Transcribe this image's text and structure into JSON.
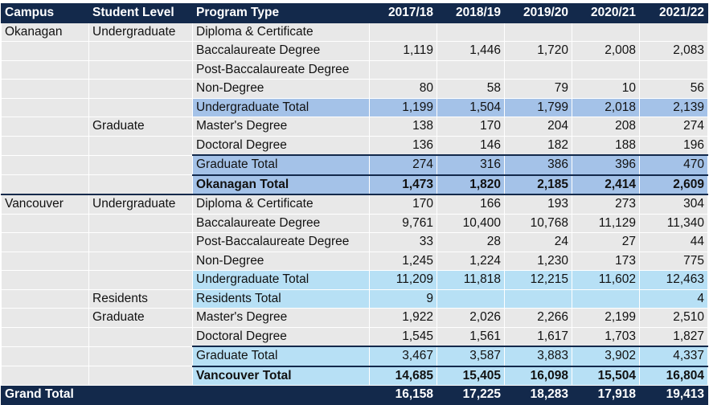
{
  "table": {
    "headers": [
      "Campus",
      "Student Level",
      "Program Type",
      "2017/18",
      "2018/19",
      "2019/20",
      "2020/21",
      "2021/22"
    ],
    "rows": [
      {
        "campus": "Okanagan",
        "level": "Undergraduate",
        "program": "Diploma & Certificate",
        "v": [
          "",
          "",
          "",
          "",
          ""
        ]
      },
      {
        "campus": "",
        "level": "",
        "program": "Baccalaureate Degree",
        "v": [
          "1,119",
          "1,446",
          "1,720",
          "2,008",
          "2,083"
        ]
      },
      {
        "campus": "",
        "level": "",
        "program": "Post-Baccalaureate Degree",
        "v": [
          "",
          "",
          "",
          "",
          ""
        ]
      },
      {
        "campus": "",
        "level": "",
        "program": "Non-Degree",
        "v": [
          "80",
          "58",
          "79",
          "10",
          "56"
        ]
      },
      {
        "campus": "",
        "level": "",
        "program": "Undergraduate Total",
        "v": [
          "1,199",
          "1,504",
          "1,799",
          "2,018",
          "2,139"
        ]
      },
      {
        "campus": "",
        "level": "Graduate",
        "program": "Master's Degree",
        "v": [
          "138",
          "170",
          "204",
          "208",
          "274"
        ]
      },
      {
        "campus": "",
        "level": "",
        "program": "Doctoral Degree",
        "v": [
          "136",
          "146",
          "182",
          "188",
          "196"
        ]
      },
      {
        "campus": "",
        "level": "",
        "program": "Graduate Total",
        "v": [
          "274",
          "316",
          "386",
          "396",
          "470"
        ]
      },
      {
        "campus": "",
        "level": "",
        "program": "Okanagan Total",
        "v": [
          "1,473",
          "1,820",
          "2,185",
          "2,414",
          "2,609"
        ]
      },
      {
        "campus": "Vancouver",
        "level": "Undergraduate",
        "program": "Diploma & Certificate",
        "v": [
          "170",
          "166",
          "193",
          "273",
          "304"
        ]
      },
      {
        "campus": "",
        "level": "",
        "program": "Baccalaureate Degree",
        "v": [
          "9,761",
          "10,400",
          "10,768",
          "11,129",
          "11,340"
        ]
      },
      {
        "campus": "",
        "level": "",
        "program": "Post-Baccalaureate Degree",
        "v": [
          "33",
          "28",
          "24",
          "27",
          "44"
        ]
      },
      {
        "campus": "",
        "level": "",
        "program": "Non-Degree",
        "v": [
          "1,245",
          "1,224",
          "1,230",
          "173",
          "775"
        ]
      },
      {
        "campus": "",
        "level": "",
        "program": "Undergraduate Total",
        "v": [
          "11,209",
          "11,818",
          "12,215",
          "11,602",
          "12,463"
        ]
      },
      {
        "campus": "",
        "level": "Residents",
        "program": "Residents Total",
        "v": [
          "9",
          "",
          "",
          "",
          "4"
        ]
      },
      {
        "campus": "",
        "level": "Graduate",
        "program": "Master's Degree",
        "v": [
          "1,922",
          "2,026",
          "2,266",
          "2,199",
          "2,510"
        ]
      },
      {
        "campus": "",
        "level": "",
        "program": "Doctoral Degree",
        "v": [
          "1,545",
          "1,561",
          "1,617",
          "1,703",
          "1,827"
        ]
      },
      {
        "campus": "",
        "level": "",
        "program": "Graduate Total",
        "v": [
          "3,467",
          "3,587",
          "3,883",
          "3,902",
          "4,337"
        ]
      },
      {
        "campus": "",
        "level": "",
        "program": "Vancouver Total",
        "v": [
          "14,685",
          "15,405",
          "16,098",
          "15,504",
          "16,804"
        ]
      }
    ],
    "grand_total": {
      "label": "Grand Total",
      "v": [
        "16,158",
        "17,225",
        "18,283",
        "17,918",
        "19,413"
      ]
    }
  },
  "colors": {
    "header_bg": "#13294b",
    "okanagan_total_bg": "#a4c2e8",
    "vancouver_total_bg": "#b7e0f5",
    "cell_bg": "#e8e8e8"
  }
}
